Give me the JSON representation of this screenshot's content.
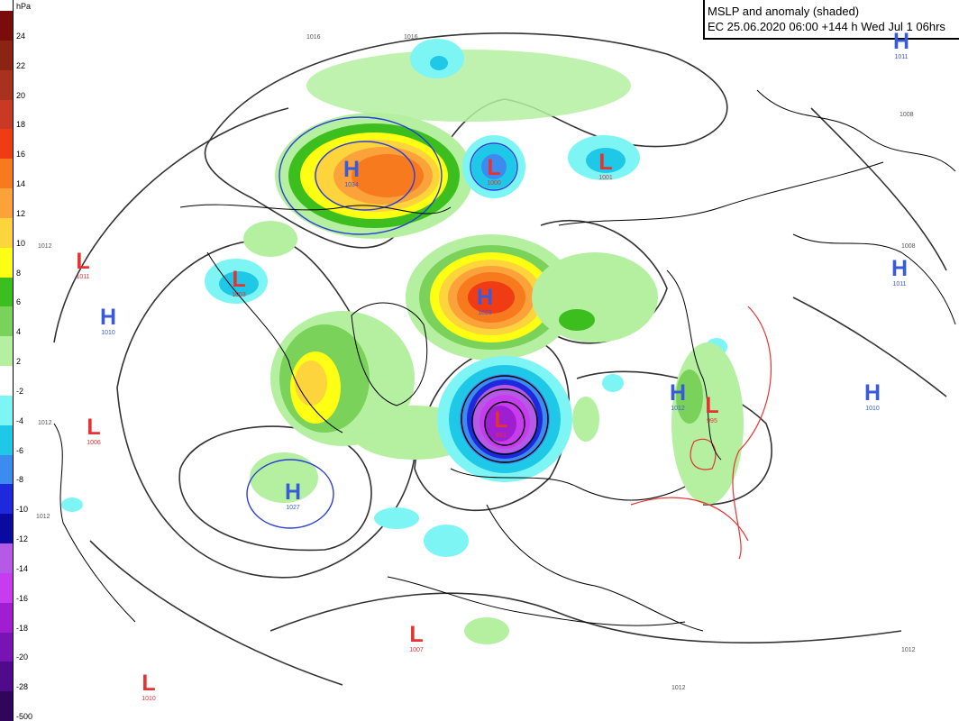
{
  "title": {
    "line1": "MSLP and anomaly (shaded)",
    "line2": "EC 25.06.2020 06:00 +144 h Wed Jul 1 06hrs"
  },
  "legend": {
    "unit": "hPa",
    "entries": [
      {
        "label": "24",
        "color": "#7a0c0c"
      },
      {
        "label": "22",
        "color": "#8c2414"
      },
      {
        "label": "20",
        "color": "#a8321e"
      },
      {
        "label": "18",
        "color": "#c83a26"
      },
      {
        "label": "16",
        "color": "#f03c14"
      },
      {
        "label": "14",
        "color": "#f87a1e"
      },
      {
        "label": "12",
        "color": "#fba23a"
      },
      {
        "label": "10",
        "color": "#fdd43c"
      },
      {
        "label": "8",
        "color": "#ffff14"
      },
      {
        "label": "6",
        "color": "#3cbe1e"
      },
      {
        "label": "4",
        "color": "#7ad25a"
      },
      {
        "label": "2",
        "color": "#b4f0a0"
      },
      {
        "label": "-2",
        "color": "#ffffff"
      },
      {
        "label": "-4",
        "color": "#7ef5f5"
      },
      {
        "label": "-6",
        "color": "#1ec8e6"
      },
      {
        "label": "-8",
        "color": "#3c8cf0"
      },
      {
        "label": "-10",
        "color": "#1e28dc"
      },
      {
        "label": "-12",
        "color": "#0a0aa0"
      },
      {
        "label": "-14",
        "color": "#b45ae6"
      },
      {
        "label": "-16",
        "color": "#c83cf0"
      },
      {
        "label": "-18",
        "color": "#a01ed2"
      },
      {
        "label": "-20",
        "color": "#7814b4"
      },
      {
        "label": "-28",
        "color": "#500a8c"
      },
      {
        "label": "-500",
        "color": "#30065a"
      }
    ]
  },
  "systems": [
    {
      "type": "H",
      "value": "1034"
    },
    {
      "type": "L",
      "value": "1000"
    },
    {
      "type": "L",
      "value": "1001"
    },
    {
      "type": "L",
      "value": "1011"
    },
    {
      "type": "L",
      "value": "1003"
    },
    {
      "type": "H",
      "value": "1010"
    },
    {
      "type": "H",
      "value": "1029"
    },
    {
      "type": "L",
      "value": "1006"
    },
    {
      "type": "H",
      "value": "1027"
    },
    {
      "type": "L",
      "value": "991"
    },
    {
      "type": "H",
      "value": "1012"
    },
    {
      "type": "L",
      "value": "995"
    },
    {
      "type": "H",
      "value": "1010"
    },
    {
      "type": "H",
      "value": "1011"
    },
    {
      "type": "H",
      "value": "1011"
    },
    {
      "type": "L",
      "value": "1007"
    },
    {
      "type": "L",
      "value": "1010"
    }
  ],
  "isobar_labels": [
    "1016",
    "1016",
    "1012",
    "1012",
    "1012",
    "1008",
    "1008",
    "1012",
    "1012"
  ],
  "colors": {
    "isobar": "#333333",
    "coast": "#000000",
    "blue_contour": "#2a3fd6",
    "red_contour": "#e53232"
  }
}
